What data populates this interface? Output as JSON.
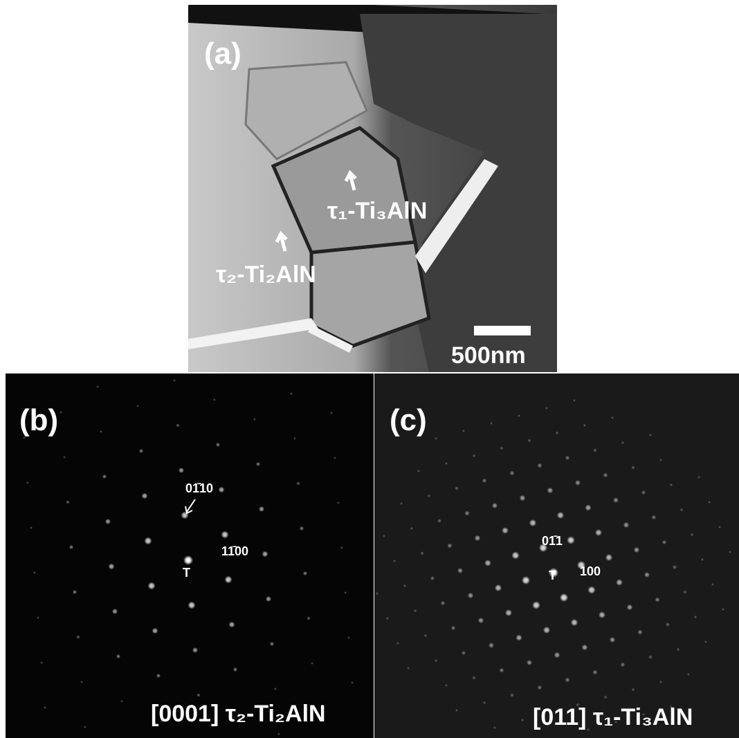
{
  "panel_a": {
    "label": "(a)",
    "phase_1": "τ₁-Ti₃AlN",
    "phase_2": "τ₂-Ti₂AlN",
    "scale_bar": "500nm"
  },
  "panel_b": {
    "label": "(b)",
    "spot_1": "01̄10",
    "spot_2": "11̄00",
    "center": "T",
    "zone": "[0001] τ₂-Ti₂AlN"
  },
  "panel_c": {
    "label": "(c)",
    "spot_1": "01̄1",
    "spot_2": "100",
    "center": "T",
    "zone": "[011] τ₁-Ti₃AlN"
  }
}
